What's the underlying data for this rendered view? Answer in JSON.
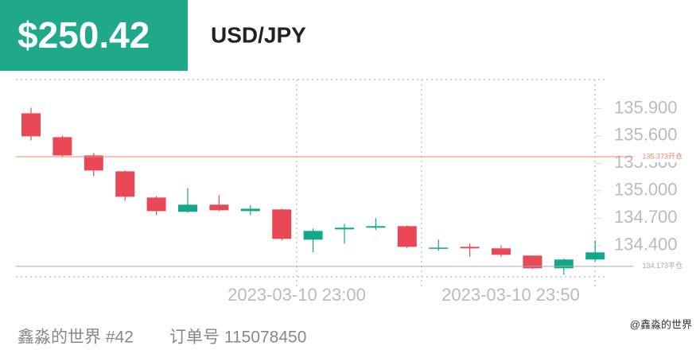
{
  "header": {
    "price": "$250.42",
    "symbol": "USD/JPY"
  },
  "footer": {
    "author": "鑫淼的世界 #42",
    "order": "订单号 115078450",
    "watermark": "@鑫淼的世界"
  },
  "chart_data": {
    "type": "candlestick",
    "up_color": "#13a88a",
    "down_color": "#e94856",
    "ylim": [
      134.05,
      136.2
    ],
    "yticks": [
      {
        "value": 135.9,
        "label": "135.900"
      },
      {
        "value": 135.6,
        "label": "135.600"
      },
      {
        "value": 135.3,
        "label": "135.300"
      },
      {
        "value": 135.0,
        "label": "135.000"
      },
      {
        "value": 134.7,
        "label": "134.700"
      },
      {
        "value": 134.4,
        "label": "134.400"
      }
    ],
    "x_labels": [
      "2023-03-10 23:00",
      "2023-03-10 23:50"
    ],
    "reference_lines": [
      {
        "value": 135.373,
        "label": "135.373开仓",
        "color": "#f08a6a"
      },
      {
        "value": 134.173,
        "label": "134.173平仓",
        "color": "#aaaaaa"
      }
    ],
    "candles": [
      {
        "open": 135.848,
        "high": 135.909,
        "low": 135.552,
        "close": 135.596
      },
      {
        "open": 135.587,
        "high": 135.604,
        "low": 135.37,
        "close": 135.387
      },
      {
        "open": 135.387,
        "high": 135.413,
        "low": 135.161,
        "close": 135.222
      },
      {
        "open": 135.213,
        "high": 135.222,
        "low": 134.891,
        "close": 134.935
      },
      {
        "open": 134.926,
        "high": 134.943,
        "low": 134.735,
        "close": 134.778
      },
      {
        "open": 134.77,
        "high": 135.03,
        "low": 134.761,
        "close": 134.848
      },
      {
        "open": 134.848,
        "high": 134.952,
        "low": 134.778,
        "close": 134.787
      },
      {
        "open": 134.778,
        "high": 134.839,
        "low": 134.735,
        "close": 134.804
      },
      {
        "open": 134.796,
        "high": 134.804,
        "low": 134.457,
        "close": 134.474
      },
      {
        "open": 134.465,
        "high": 134.587,
        "low": 134.326,
        "close": 134.561
      },
      {
        "open": 134.578,
        "high": 134.639,
        "low": 134.422,
        "close": 134.596
      },
      {
        "open": 134.596,
        "high": 134.7,
        "low": 134.57,
        "close": 134.613
      },
      {
        "open": 134.613,
        "high": 134.622,
        "low": 134.37,
        "close": 134.387
      },
      {
        "open": 134.37,
        "high": 134.465,
        "low": 134.343,
        "close": 134.378
      },
      {
        "open": 134.387,
        "high": 134.422,
        "low": 134.278,
        "close": 134.37
      },
      {
        "open": 134.37,
        "high": 134.404,
        "low": 134.278,
        "close": 134.3
      },
      {
        "open": 134.291,
        "high": 134.291,
        "low": 134.143,
        "close": 134.152
      },
      {
        "open": 134.152,
        "high": 134.257,
        "low": 134.083,
        "close": 134.248
      },
      {
        "open": 134.248,
        "high": 134.457,
        "low": 134.226,
        "close": 134.326
      }
    ]
  }
}
